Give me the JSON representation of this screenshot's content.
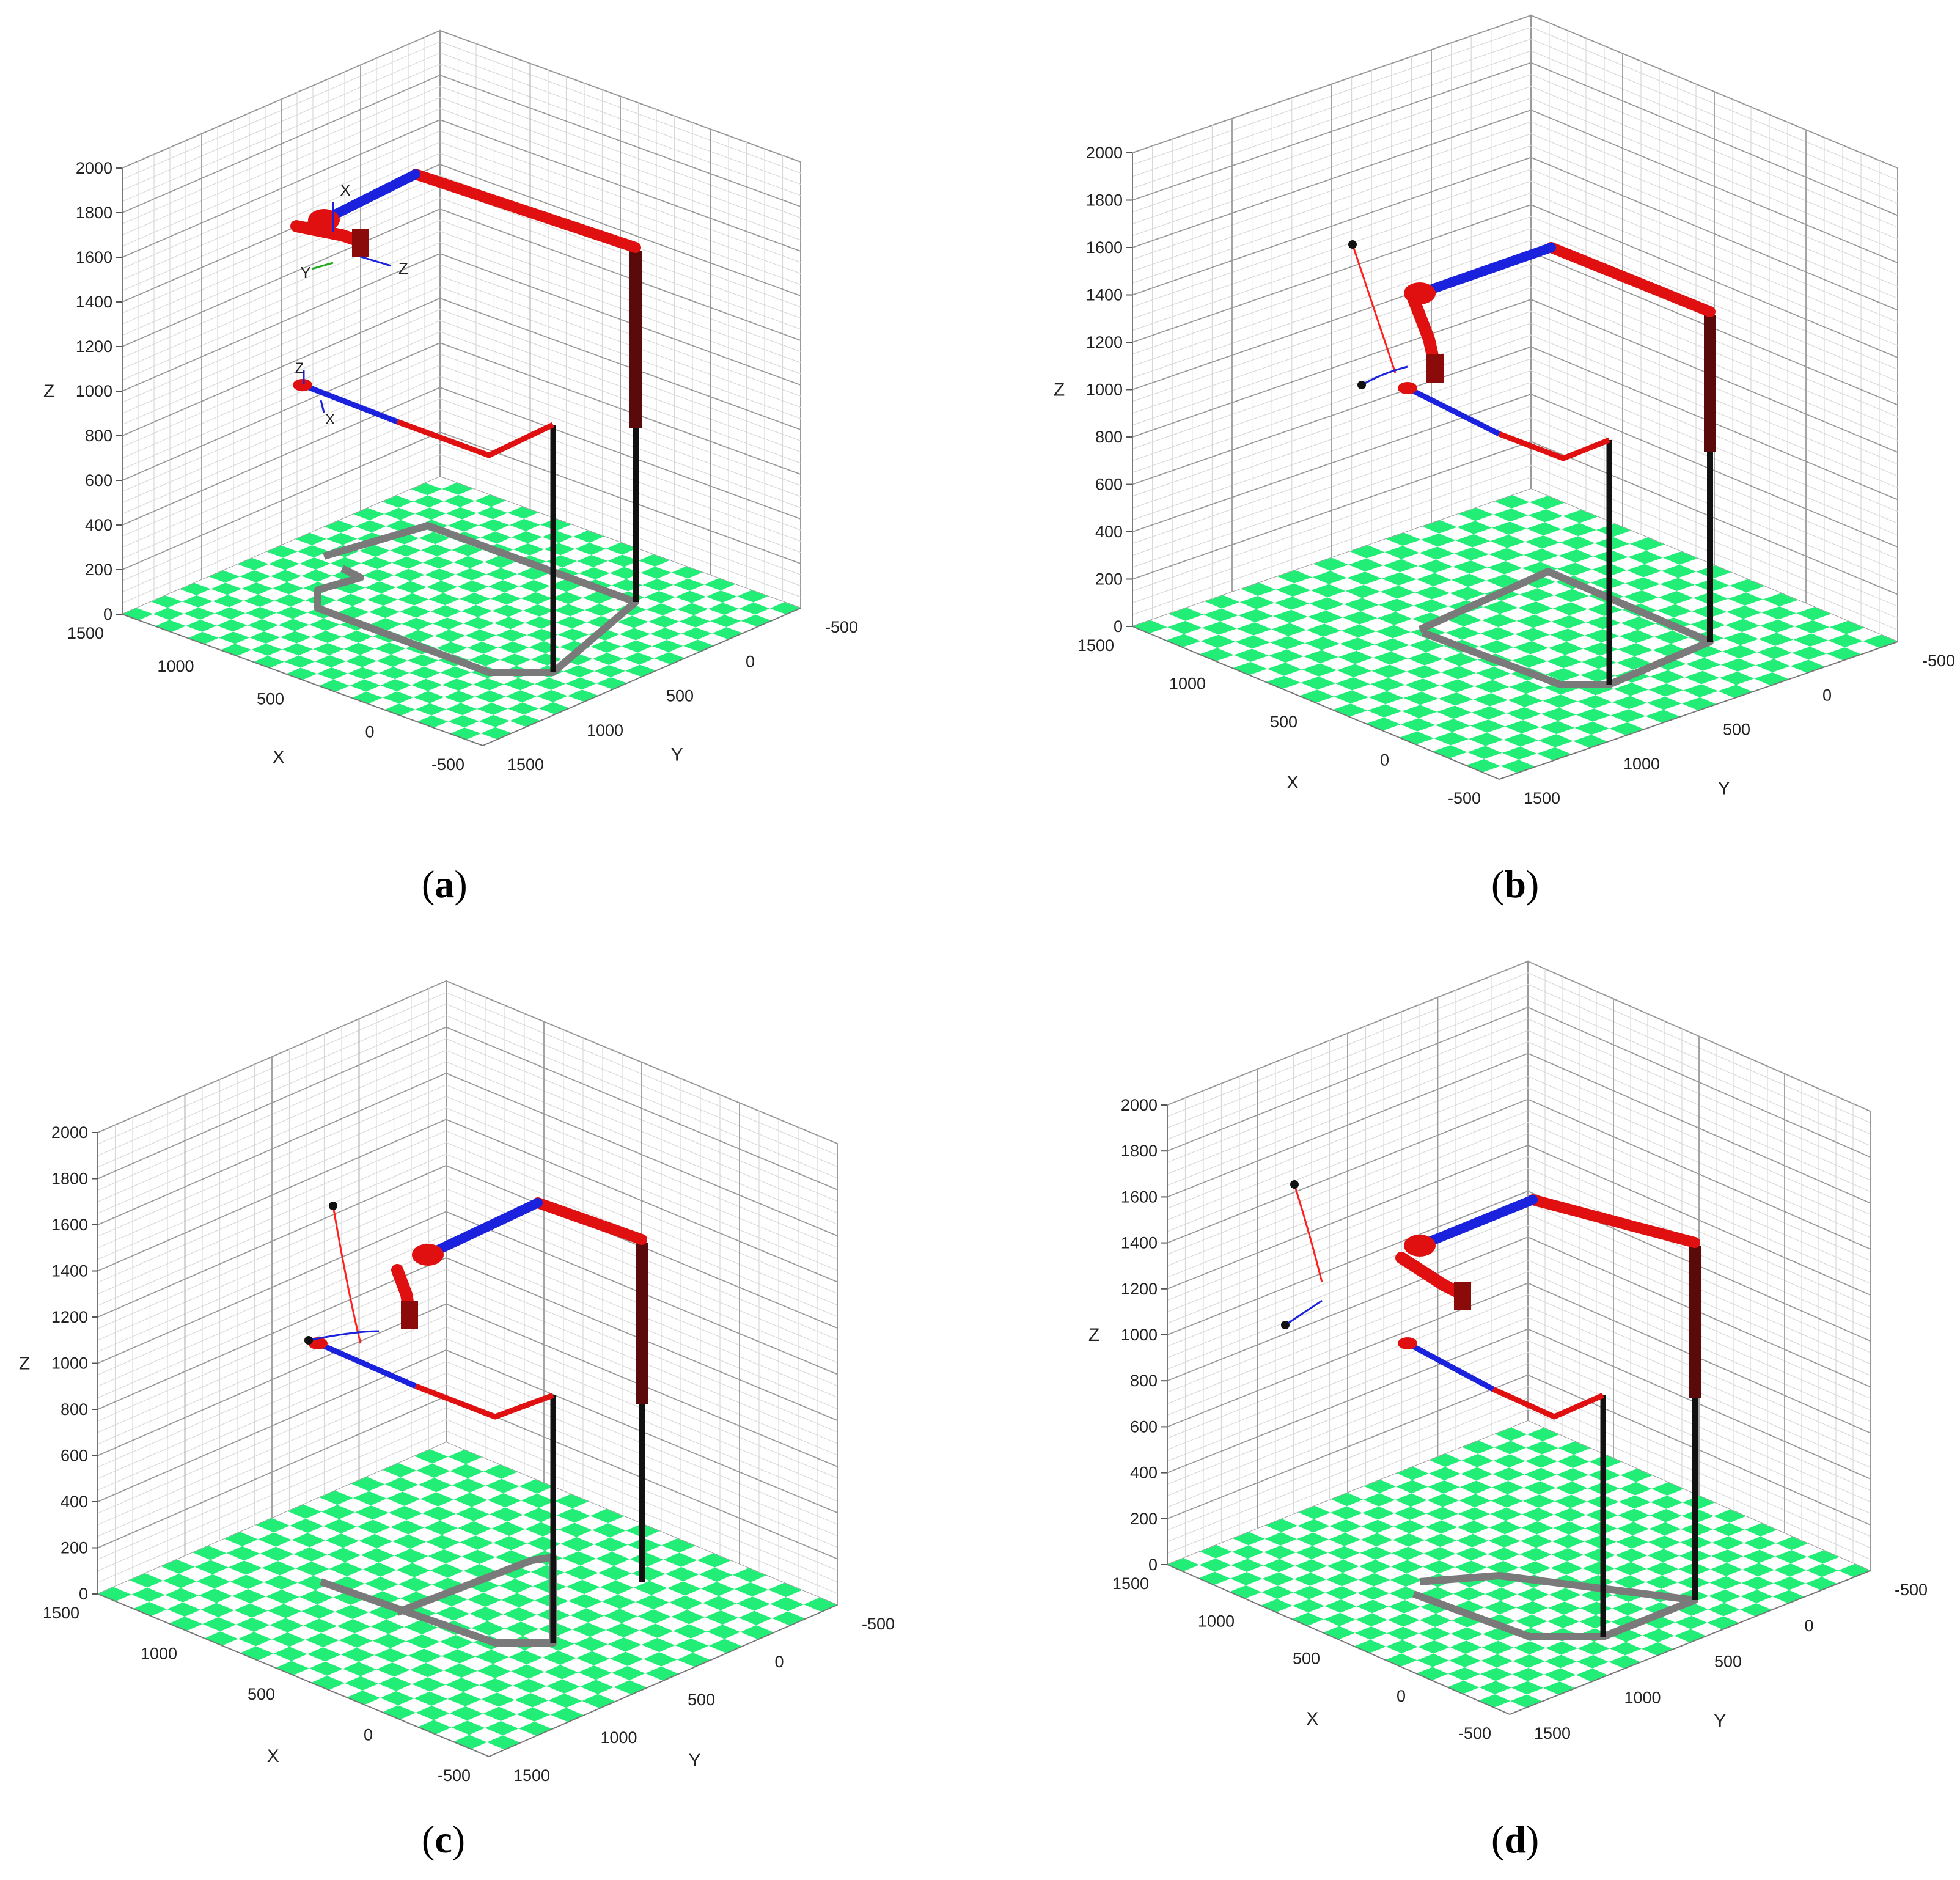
{
  "figure": {
    "z_ticks": [
      "0",
      "200",
      "400",
      "600",
      "800",
      "1000",
      "1200",
      "1400",
      "1600",
      "1800",
      "2000"
    ],
    "x_ticks": [
      "1500",
      "1000",
      "500",
      "0",
      "-500"
    ],
    "y_ticks": [
      "1500",
      "1000",
      "500",
      "0",
      "-500"
    ],
    "x_axis_label": "X",
    "y_axis_label": "Y",
    "z_axis_label": "Z",
    "frame_labels": {
      "x": "X",
      "y": "Y",
      "z": "Z"
    },
    "colors": {
      "floor_check": "#22ee77",
      "upper_arm_red": "#e01010",
      "upper_arm_blue": "#1a22dd",
      "column_dark": "#5a0a0a",
      "path_gray": "#7a7a7a",
      "trajectory": "#ff2020"
    }
  },
  "panels": [
    {
      "letter": "a",
      "open": "(",
      "close": ")"
    },
    {
      "letter": "b",
      "open": "(",
      "close": ")"
    },
    {
      "letter": "c",
      "open": "(",
      "close": ")"
    },
    {
      "letter": "d",
      "open": "(",
      "close": ")"
    }
  ]
}
